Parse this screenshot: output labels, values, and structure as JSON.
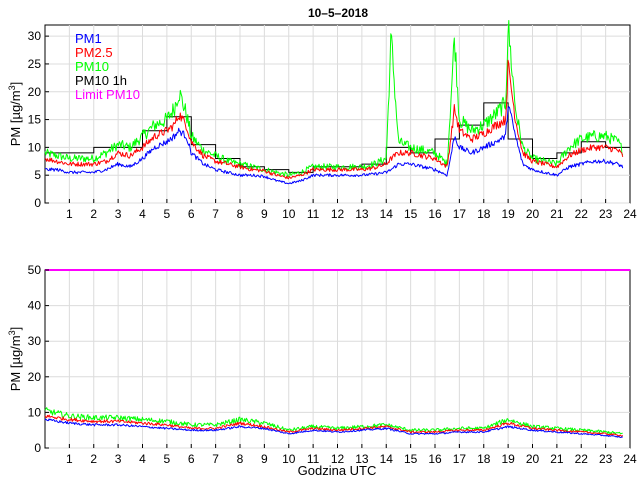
{
  "chart_data": [
    {
      "type": "line",
      "title": "10–5–2018",
      "ylabel": "PM [µg/m³]",
      "ylabel_main": "PM [µg/m",
      "ylabel_sup": "3",
      "ylabel_end": "]",
      "xlabel": "",
      "xlim": [
        0,
        24
      ],
      "ylim": [
        0,
        32
      ],
      "yticks": [
        "0",
        "5",
        "10",
        "15",
        "20",
        "25",
        "30"
      ],
      "ytick_values": [
        0,
        5,
        10,
        15,
        20,
        25,
        30
      ],
      "xticks": [
        "1",
        "2",
        "3",
        "4",
        "5",
        "6",
        "7",
        "8",
        "9",
        "10",
        "11",
        "12",
        "13",
        "14",
        "15",
        "16",
        "17",
        "18",
        "19",
        "20",
        "21",
        "22",
        "23",
        "24"
      ],
      "grid": true,
      "legend_position": "top-left",
      "legend": [
        {
          "label": "PM1",
          "color": "#0000ff"
        },
        {
          "label": "PM2.5",
          "color": "#ff0000"
        },
        {
          "label": "PM10",
          "color": "#00ff00"
        },
        {
          "label": "PM10 1h",
          "color": "#000000"
        },
        {
          "label": "Limit PM10",
          "color": "#ff00ff"
        }
      ],
      "series": [
        {
          "name": "PM1",
          "color": "#0000ff",
          "x": [
            0,
            0.5,
            1,
            1.5,
            2,
            2.5,
            3,
            3.5,
            4,
            4.5,
            5,
            5.3,
            5.5,
            5.8,
            6,
            6.5,
            7,
            7.5,
            8,
            8.5,
            9,
            9.5,
            10,
            10.5,
            11,
            11.5,
            12,
            12.5,
            13,
            13.5,
            14,
            14.2,
            14.5,
            15,
            15.5,
            16,
            16.5,
            16.8,
            17,
            17.5,
            18,
            18.5,
            18.9,
            19,
            19.3,
            19.6,
            20,
            20.5,
            21,
            21.5,
            22,
            22.5,
            23,
            23.5,
            23.7
          ],
          "values": [
            6,
            6,
            5.5,
            5.5,
            5.5,
            6,
            7,
            6.5,
            8,
            10,
            11,
            12,
            13,
            12,
            9,
            7,
            6,
            5.5,
            5,
            5,
            4.8,
            4,
            3.5,
            4,
            5,
            5,
            5,
            5,
            5,
            5.2,
            5.5,
            6,
            7,
            7,
            6.5,
            6,
            5,
            12,
            10,
            9,
            10,
            11,
            12,
            18,
            12,
            7,
            6,
            5.5,
            5,
            6.5,
            7,
            7.5,
            7.5,
            7,
            6.5
          ]
        },
        {
          "name": "PM2.5",
          "color": "#ff0000",
          "x": [
            0,
            0.5,
            1,
            1.5,
            2,
            2.5,
            3,
            3.5,
            4,
            4.5,
            5,
            5.3,
            5.5,
            5.8,
            6,
            6.5,
            7,
            7.5,
            8,
            8.5,
            9,
            9.5,
            10,
            10.5,
            11,
            11.5,
            12,
            12.5,
            13,
            13.5,
            14,
            14.2,
            14.5,
            15,
            15.5,
            16,
            16.5,
            16.8,
            17,
            17.5,
            18,
            18.5,
            18.9,
            19,
            19.3,
            19.6,
            20,
            20.5,
            21,
            21.5,
            22,
            22.5,
            23,
            23.5,
            23.7
          ],
          "values": [
            8,
            7.5,
            7,
            7,
            7,
            7.5,
            9,
            8.5,
            10,
            12,
            13,
            14,
            16,
            14,
            11,
            8.5,
            7.5,
            7,
            6.5,
            6,
            5.8,
            5,
            4.5,
            5,
            6,
            6,
            6,
            6,
            6,
            6.3,
            7,
            8,
            9,
            9,
            8.5,
            8,
            6.5,
            17,
            13,
            11.5,
            12.5,
            14,
            15,
            25,
            15,
            9,
            7.5,
            7,
            6.5,
            8.5,
            9.5,
            10,
            10,
            9.5,
            8.5
          ]
        },
        {
          "name": "PM10",
          "color": "#00ff00",
          "x": [
            0,
            0.5,
            1,
            1.5,
            2,
            2.5,
            3,
            3.5,
            4,
            4.5,
            5,
            5.3,
            5.5,
            5.8,
            6,
            6.5,
            7,
            7.5,
            8,
            8.5,
            9,
            9.5,
            10,
            10.5,
            11,
            11.5,
            12,
            12.5,
            13,
            13.5,
            14,
            14.2,
            14.5,
            15,
            15.5,
            16,
            16.5,
            16.8,
            17,
            17.5,
            18,
            18.5,
            18.9,
            19,
            19.3,
            19.6,
            20,
            20.5,
            21,
            21.5,
            22,
            22.5,
            23,
            23.5,
            23.7
          ],
          "values": [
            9,
            8.5,
            8,
            8,
            8,
            9,
            10.5,
            10,
            12,
            14,
            15,
            17,
            20,
            16,
            12,
            9.5,
            8.5,
            7.5,
            7,
            6.5,
            6,
            5.5,
            5,
            5.5,
            6.5,
            6.5,
            6.5,
            6.5,
            6.5,
            7,
            8,
            30,
            11,
            10,
            9.5,
            9,
            7,
            30,
            15,
            13,
            14,
            16,
            18,
            32,
            17,
            10,
            8,
            7.5,
            7,
            10,
            11.5,
            12,
            12,
            11,
            9.5
          ]
        }
      ],
      "hourly_pm10": [
        9,
        9,
        10,
        10,
        13,
        15.5,
        10.5,
        8,
        6.5,
        6,
        5.5,
        6.5,
        6.5,
        7,
        10,
        9,
        11.5,
        14,
        18,
        11.5,
        8,
        9,
        11,
        10
      ]
    },
    {
      "type": "line",
      "title": "",
      "ylabel": "PM [µg/m³]",
      "ylabel_main": "PM [µg/m",
      "ylabel_sup": "3",
      "ylabel_end": "]",
      "xlabel": "Godzina UTC",
      "xlim": [
        0,
        24
      ],
      "ylim": [
        0,
        50
      ],
      "yticks": [
        "0",
        "10",
        "20",
        "30",
        "40",
        "50"
      ],
      "ytick_values": [
        0,
        10,
        20,
        30,
        40,
        50
      ],
      "xticks": [
        "1",
        "2",
        "3",
        "4",
        "5",
        "6",
        "7",
        "8",
        "9",
        "10",
        "11",
        "12",
        "13",
        "14",
        "15",
        "16",
        "17",
        "18",
        "19",
        "20",
        "21",
        "22",
        "23",
        "24"
      ],
      "grid": true,
      "series": [
        {
          "name": "PM1",
          "color": "#0000ff",
          "x": [
            0,
            1,
            2,
            3,
            4,
            5,
            6,
            7,
            8,
            9,
            10,
            11,
            12,
            13,
            14,
            15,
            16,
            17,
            18,
            19,
            20,
            21,
            22,
            23,
            23.7
          ],
          "values": [
            8,
            7,
            6.5,
            6.5,
            6,
            5.5,
            5,
            5,
            6,
            5.5,
            4,
            5,
            4.5,
            5,
            5.5,
            4,
            4,
            4.5,
            4.5,
            6,
            5,
            4.5,
            4,
            3.5,
            3
          ]
        },
        {
          "name": "PM2.5",
          "color": "#ff0000",
          "x": [
            0,
            1,
            2,
            3,
            4,
            5,
            6,
            7,
            8,
            9,
            10,
            11,
            12,
            13,
            14,
            15,
            16,
            17,
            18,
            19,
            20,
            21,
            22,
            23,
            23.7
          ],
          "values": [
            9,
            8,
            7.5,
            7.5,
            7,
            6.5,
            5.5,
            5.5,
            7,
            6,
            4.5,
            5.5,
            5,
            5.5,
            6,
            4.5,
            4.5,
            5,
            5,
            7,
            5.5,
            5,
            4.5,
            4,
            3.5
          ]
        },
        {
          "name": "PM10",
          "color": "#00ff00",
          "x": [
            0,
            1,
            2,
            3,
            4,
            5,
            6,
            7,
            8,
            9,
            10,
            11,
            12,
            13,
            14,
            15,
            16,
            17,
            18,
            19,
            20,
            21,
            22,
            23,
            23.7
          ],
          "values": [
            10.5,
            9,
            8.5,
            8.5,
            8,
            7.5,
            6.5,
            6.5,
            8,
            7,
            5,
            6,
            5.5,
            6,
            6.5,
            5,
            5,
            5.5,
            5.5,
            8,
            6,
            5.5,
            5,
            4.5,
            4
          ]
        },
        {
          "name": "Limit PM10",
          "color": "#ff00ff",
          "x": [
            0,
            24
          ],
          "values": [
            50,
            50
          ]
        }
      ]
    }
  ]
}
